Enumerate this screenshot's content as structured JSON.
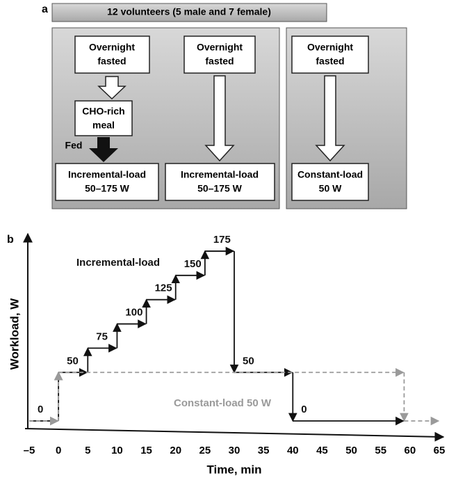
{
  "diagram": {
    "panel_label": "a",
    "title": "12 volunteers (5 male and 7 female)",
    "columns": [
      {
        "top": [
          "Overnight",
          "fasted"
        ],
        "middle": [
          "CHO-rich",
          "meal"
        ],
        "arrow_label": "Fed",
        "bottom": [
          "Incremental-load",
          "50–175  W"
        ]
      },
      {
        "top": [
          "Overnight",
          "fasted"
        ],
        "bottom": [
          "Incremental-load",
          "50–175  W"
        ]
      },
      {
        "top": [
          "Overnight",
          "fasted"
        ],
        "bottom": [
          "Constant-load",
          "50  W"
        ]
      }
    ]
  },
  "chart_data": {
    "type": "step",
    "panel_label": "b",
    "x_label": "Time, min",
    "y_label": "Workload, W",
    "xlim": [
      -5,
      65
    ],
    "ylim": [
      -5,
      190
    ],
    "xticks": [
      {
        "value": -5,
        "label": "–5"
      },
      0,
      5,
      10,
      15,
      20,
      25,
      30,
      35,
      40,
      45,
      50,
      55,
      60,
      65
    ],
    "series": [
      {
        "name": "Incremental-load",
        "color": "#111111",
        "bins": [
          -5,
          0,
          5,
          10,
          15,
          20,
          25,
          30,
          40,
          59
        ],
        "values": [
          0,
          50,
          75,
          100,
          125,
          150,
          175,
          50,
          0
        ]
      },
      {
        "name": "Constant-load 50 W",
        "color": "#9a9a9a",
        "bins": [
          -5,
          0,
          59,
          65
        ],
        "values": [
          0,
          50,
          0
        ]
      }
    ]
  }
}
